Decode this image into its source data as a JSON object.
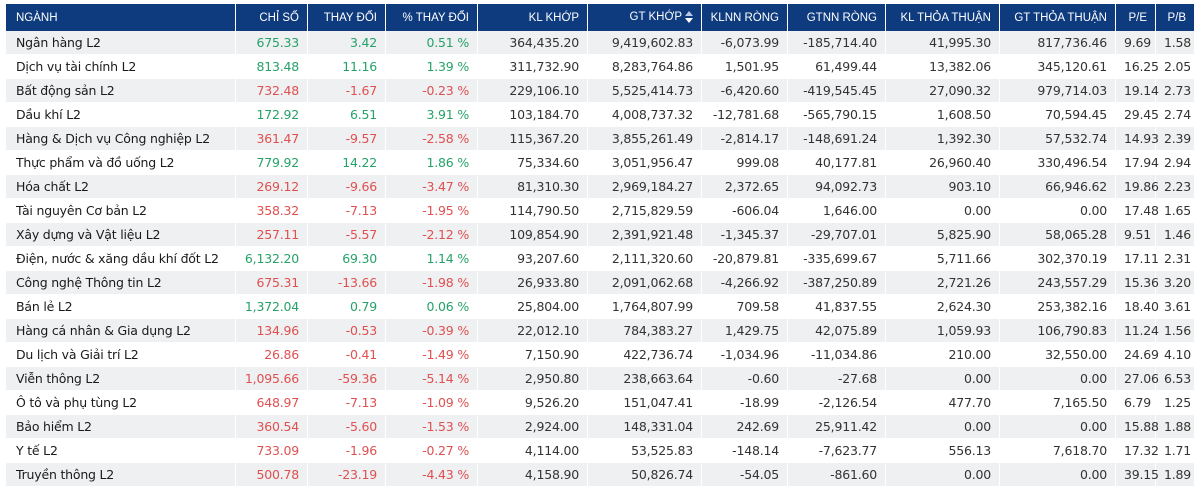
{
  "colors": {
    "header_bg": "#0e3a7e",
    "up": "#26a269",
    "down": "#e05050",
    "row_alt": "#eef0f2"
  },
  "table": {
    "headers": {
      "sector": "NGÀNH",
      "index": "CHỈ SỐ",
      "change": "THAY ĐỔI",
      "pct_change": "% THAY ĐỔI",
      "match_vol": "KL KHỚP",
      "match_val": "GT KHỚP",
      "foreign_net_vol": "KLNN RÒNG",
      "foreign_net_val": "GTNN RÒNG",
      "deal_vol": "KL THỎA THUẬN",
      "deal_val": "GT THỎA THUẬN",
      "pe": "P/E",
      "pb": "P/B"
    },
    "sort_icon": "sort-arrows-icon",
    "rows": [
      {
        "sector": "Ngân hàng L2",
        "index": "675.33",
        "change": "3.42",
        "pct": "0.51 %",
        "dir": "up",
        "kl_khop": "364,435.20",
        "gt_khop": "9,419,602.83",
        "klnn": "-6,073.99",
        "gtnn": "-185,714.40",
        "kltt": "41,995.30",
        "gttt": "817,736.46",
        "pe": "9.69",
        "pb": "1.58"
      },
      {
        "sector": "Dịch vụ tài chính L2",
        "index": "813.48",
        "change": "11.16",
        "pct": "1.39 %",
        "dir": "up",
        "kl_khop": "311,732.90",
        "gt_khop": "8,283,764.86",
        "klnn": "1,501.95",
        "gtnn": "61,499.44",
        "kltt": "13,382.06",
        "gttt": "345,120.61",
        "pe": "16.25",
        "pb": "2.05"
      },
      {
        "sector": "Bất động sản L2",
        "index": "732.48",
        "change": "-1.67",
        "pct": "-0.23 %",
        "dir": "down",
        "kl_khop": "229,106.10",
        "gt_khop": "5,525,414.73",
        "klnn": "-6,420.60",
        "gtnn": "-419,545.45",
        "kltt": "27,090.32",
        "gttt": "979,714.03",
        "pe": "19.14",
        "pb": "2.73"
      },
      {
        "sector": "Dầu khí L2",
        "index": "172.92",
        "change": "6.51",
        "pct": "3.91 %",
        "dir": "up",
        "kl_khop": "103,184.70",
        "gt_khop": "4,008,737.32",
        "klnn": "-12,781.68",
        "gtnn": "-565,790.15",
        "kltt": "1,608.50",
        "gttt": "70,594.45",
        "pe": "29.45",
        "pb": "2.74"
      },
      {
        "sector": "Hàng & Dịch vụ Công nghiệp L2",
        "index": "361.47",
        "change": "-9.57",
        "pct": "-2.58 %",
        "dir": "down",
        "kl_khop": "115,367.20",
        "gt_khop": "3,855,261.49",
        "klnn": "-2,814.17",
        "gtnn": "-148,691.24",
        "kltt": "1,392.30",
        "gttt": "57,532.74",
        "pe": "14.93",
        "pb": "2.39"
      },
      {
        "sector": "Thực phẩm và đồ uống L2",
        "index": "779.92",
        "change": "14.22",
        "pct": "1.86 %",
        "dir": "up",
        "kl_khop": "75,334.60",
        "gt_khop": "3,051,956.47",
        "klnn": "999.08",
        "gtnn": "40,177.81",
        "kltt": "26,960.40",
        "gttt": "330,496.54",
        "pe": "17.94",
        "pb": "2.94"
      },
      {
        "sector": "Hóa chất L2",
        "index": "269.12",
        "change": "-9.66",
        "pct": "-3.47 %",
        "dir": "down",
        "kl_khop": "81,310.30",
        "gt_khop": "2,969,184.27",
        "klnn": "2,372.65",
        "gtnn": "94,092.73",
        "kltt": "903.10",
        "gttt": "66,946.62",
        "pe": "19.86",
        "pb": "2.23"
      },
      {
        "sector": "Tài nguyên Cơ bản L2",
        "index": "358.32",
        "change": "-7.13",
        "pct": "-1.95 %",
        "dir": "down",
        "kl_khop": "114,790.50",
        "gt_khop": "2,715,829.59",
        "klnn": "-606.04",
        "gtnn": "1,646.00",
        "kltt": "0.00",
        "gttt": "0.00",
        "pe": "17.48",
        "pb": "1.65"
      },
      {
        "sector": "Xây dựng và Vật liệu L2",
        "index": "257.11",
        "change": "-5.57",
        "pct": "-2.12 %",
        "dir": "down",
        "kl_khop": "109,854.90",
        "gt_khop": "2,391,921.48",
        "klnn": "-1,345.37",
        "gtnn": "-29,707.01",
        "kltt": "5,825.90",
        "gttt": "58,065.28",
        "pe": "9.51",
        "pb": "1.46"
      },
      {
        "sector": "Điện, nước & xăng dầu khí đốt L2",
        "index": "6,132.20",
        "change": "69.30",
        "pct": "1.14 %",
        "dir": "up",
        "kl_khop": "93,207.60",
        "gt_khop": "2,111,320.60",
        "klnn": "-20,879.81",
        "gtnn": "-335,699.67",
        "kltt": "5,711.66",
        "gttt": "302,370.19",
        "pe": "17.11",
        "pb": "2.31"
      },
      {
        "sector": "Công nghệ Thông tin L2",
        "index": "675.31",
        "change": "-13.66",
        "pct": "-1.98 %",
        "dir": "down",
        "kl_khop": "26,933.80",
        "gt_khop": "2,091,062.68",
        "klnn": "-4,266.92",
        "gtnn": "-387,250.89",
        "kltt": "2,721.26",
        "gttt": "243,557.29",
        "pe": "15.36",
        "pb": "3.20"
      },
      {
        "sector": "Bán lẻ L2",
        "index": "1,372.04",
        "change": "0.79",
        "pct": "0.06 %",
        "dir": "up",
        "kl_khop": "25,804.00",
        "gt_khop": "1,764,807.99",
        "klnn": "709.58",
        "gtnn": "41,837.55",
        "kltt": "2,624.30",
        "gttt": "253,382.16",
        "pe": "18.40",
        "pb": "3.61"
      },
      {
        "sector": "Hàng cá nhân & Gia dụng L2",
        "index": "134.96",
        "change": "-0.53",
        "pct": "-0.39 %",
        "dir": "down",
        "kl_khop": "22,012.10",
        "gt_khop": "784,383.27",
        "klnn": "1,429.75",
        "gtnn": "42,075.89",
        "kltt": "1,059.93",
        "gttt": "106,790.83",
        "pe": "11.24",
        "pb": "1.56"
      },
      {
        "sector": "Du lịch và Giải trí L2",
        "index": "26.86",
        "change": "-0.41",
        "pct": "-1.49 %",
        "dir": "down",
        "kl_khop": "7,150.90",
        "gt_khop": "422,736.74",
        "klnn": "-1,034.96",
        "gtnn": "-11,034.86",
        "kltt": "210.00",
        "gttt": "32,550.00",
        "pe": "24.69",
        "pb": "4.10"
      },
      {
        "sector": "Viễn thông L2",
        "index": "1,095.66",
        "change": "-59.36",
        "pct": "-5.14 %",
        "dir": "down",
        "kl_khop": "2,950.80",
        "gt_khop": "238,663.64",
        "klnn": "-0.60",
        "gtnn": "-27.68",
        "kltt": "0.00",
        "gttt": "0.00",
        "pe": "27.06",
        "pb": "6.53"
      },
      {
        "sector": "Ô tô và phụ tùng L2",
        "index": "648.97",
        "change": "-7.13",
        "pct": "-1.09 %",
        "dir": "down",
        "kl_khop": "9,526.20",
        "gt_khop": "151,047.41",
        "klnn": "-18.99",
        "gtnn": "-2,126.54",
        "kltt": "477.70",
        "gttt": "7,165.50",
        "pe": "6.79",
        "pb": "1.25"
      },
      {
        "sector": "Bảo hiểm L2",
        "index": "360.54",
        "change": "-5.60",
        "pct": "-1.53 %",
        "dir": "down",
        "kl_khop": "2,924.00",
        "gt_khop": "148,331.04",
        "klnn": "242.69",
        "gtnn": "25,911.42",
        "kltt": "0.00",
        "gttt": "0.00",
        "pe": "15.88",
        "pb": "1.88"
      },
      {
        "sector": "Y tế L2",
        "index": "733.09",
        "change": "-1.96",
        "pct": "-0.27 %",
        "dir": "down",
        "kl_khop": "4,114.00",
        "gt_khop": "53,525.83",
        "klnn": "-148.14",
        "gtnn": "-7,623.77",
        "kltt": "556.13",
        "gttt": "7,618.70",
        "pe": "17.32",
        "pb": "1.71"
      },
      {
        "sector": "Truyền thông L2",
        "index": "500.78",
        "change": "-23.19",
        "pct": "-4.43 %",
        "dir": "down",
        "kl_khop": "4,158.90",
        "gt_khop": "50,826.74",
        "klnn": "-54.05",
        "gtnn": "-861.60",
        "kltt": "0.00",
        "gttt": "0.00",
        "pe": "39.15",
        "pb": "1.89"
      }
    ]
  }
}
